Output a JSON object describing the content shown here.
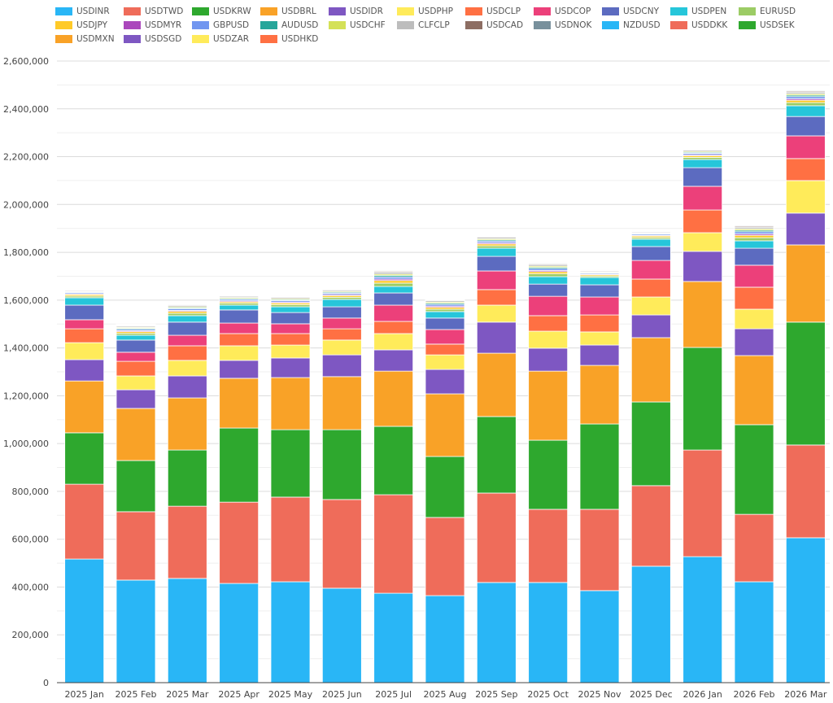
{
  "chart_data": {
    "type": "bar",
    "stacked": true,
    "title": "",
    "xlabel": "",
    "ylabel": "",
    "ylim": [
      0,
      2600000
    ],
    "yticks": [
      0,
      200000,
      400000,
      600000,
      800000,
      1000000,
      1200000,
      1400000,
      1600000,
      1800000,
      2000000,
      2200000,
      2400000,
      2600000
    ],
    "ytick_labels": [
      "0",
      "200,000",
      "400,000",
      "600,000",
      "800,000",
      "1,000,000",
      "1,200,000",
      "1,400,000",
      "1,600,000",
      "1,800,000",
      "2,000,000",
      "2,200,000",
      "2,400,000",
      "2,600,000"
    ],
    "grid": true,
    "legend_placement": "top",
    "categories": [
      "2025 Jan",
      "2025 Feb",
      "2025 Mar",
      "2025 Apr",
      "2025 May",
      "2025 Jun",
      "2025 Jul",
      "2025 Aug",
      "2025 Sep",
      "2025 Oct",
      "2025 Nov",
      "2025 Dec",
      "2026 Jan",
      "2026 Feb",
      "2026 Mar"
    ],
    "series": [
      {
        "name": "USDINR",
        "color": "#29b6f6",
        "values": [
          517000,
          429000,
          436000,
          415000,
          422000,
          395000,
          374000,
          364000,
          419000,
          419000,
          385000,
          487000,
          527000,
          422000,
          606000
        ]
      },
      {
        "name": "USDTWD",
        "color": "#ef6c5a",
        "values": [
          313000,
          286000,
          302000,
          340000,
          354000,
          371000,
          412000,
          327000,
          374000,
          306000,
          340000,
          337000,
          446000,
          282000,
          388000
        ]
      },
      {
        "name": "USDKRW",
        "color": "#2ea82e",
        "values": [
          215000,
          214000,
          235000,
          310000,
          282000,
          292000,
          286000,
          255000,
          320000,
          289000,
          357000,
          350000,
          429000,
          375000,
          514000
        ]
      },
      {
        "name": "USDBRL",
        "color": "#f9a227",
        "values": [
          217000,
          218000,
          218000,
          208000,
          218000,
          222000,
          231000,
          262000,
          265000,
          289000,
          245000,
          269000,
          276000,
          289000,
          323000
        ]
      },
      {
        "name": "USDIDR",
        "color": "#7e57c2",
        "values": [
          89000,
          78000,
          92000,
          75000,
          82000,
          91000,
          89000,
          102000,
          130000,
          96000,
          85000,
          95000,
          126000,
          112000,
          133000
        ]
      },
      {
        "name": "USDPHP",
        "color": "#ffeb5a",
        "values": [
          71000,
          58000,
          65000,
          61000,
          54000,
          62000,
          68000,
          61000,
          71000,
          71000,
          55000,
          75000,
          78000,
          82000,
          136000
        ]
      },
      {
        "name": "USDCLP",
        "color": "#ff7043",
        "values": [
          58000,
          61000,
          61000,
          51000,
          48000,
          47000,
          51000,
          45000,
          65000,
          65000,
          71000,
          75000,
          95000,
          92000,
          92000
        ]
      },
      {
        "name": "USDCOP",
        "color": "#ec407a",
        "values": [
          38000,
          38000,
          44000,
          44000,
          41000,
          45000,
          68000,
          61000,
          78000,
          81000,
          75000,
          78000,
          99000,
          92000,
          95000
        ]
      },
      {
        "name": "USDCNY",
        "color": "#5c6bc0",
        "values": [
          61000,
          51000,
          55000,
          55000,
          47000,
          47000,
          51000,
          48000,
          61000,
          51000,
          51000,
          58000,
          78000,
          71000,
          81000
        ]
      },
      {
        "name": "USDPEN",
        "color": "#26c6da",
        "values": [
          31000,
          20000,
          27000,
          20000,
          24000,
          31000,
          27000,
          27000,
          34000,
          31000,
          31000,
          31000,
          34000,
          31000,
          45000
        ]
      },
      {
        "name": "EURUSD",
        "color": "#9ccc65",
        "values": [
          7000,
          8000,
          10000,
          8000,
          9000,
          9000,
          14000,
          10000,
          10000,
          12000,
          6000,
          7000,
          9000,
          13000,
          13000
        ]
      },
      {
        "name": "USDJPY",
        "color": "#ffca28",
        "values": [
          6000,
          7000,
          8000,
          6000,
          7000,
          7000,
          11000,
          8000,
          8000,
          9000,
          5000,
          6000,
          7000,
          10000,
          10000
        ]
      },
      {
        "name": "USDMYR",
        "color": "#ab47bc",
        "values": [
          3000,
          4000,
          4000,
          4000,
          4000,
          4000,
          6000,
          5000,
          5000,
          5000,
          3000,
          3000,
          4000,
          6000,
          6000
        ]
      },
      {
        "name": "GBPUSD",
        "color": "#7196f0",
        "values": [
          5000,
          6000,
          7000,
          6000,
          6000,
          6000,
          9000,
          7000,
          7000,
          8000,
          4000,
          5000,
          6000,
          9000,
          9000
        ]
      },
      {
        "name": "AUDUSD",
        "color": "#26a69a",
        "values": [
          3000,
          4000,
          4000,
          4000,
          4000,
          4000,
          6000,
          5000,
          5000,
          5000,
          3000,
          3000,
          4000,
          6000,
          6000
        ]
      },
      {
        "name": "USDCHF",
        "color": "#d4e157",
        "values": [
          3000,
          4000,
          4000,
          4000,
          4000,
          4000,
          6000,
          5000,
          5000,
          5000,
          3000,
          3000,
          4000,
          6000,
          6000
        ]
      },
      {
        "name": "CLFCLP",
        "color": "#bdbdbd",
        "values": [
          4000,
          5000,
          6000,
          5000,
          5000,
          5000,
          8000,
          6000,
          6000,
          7000,
          4000,
          4000,
          5000,
          7000,
          7000
        ]
      },
      {
        "name": "USDCAD",
        "color": "#8d6e63",
        "values": [
          2000,
          2000,
          3000,
          2000,
          3000,
          3000,
          4000,
          3000,
          3000,
          3000,
          2000,
          2000,
          3000,
          4000,
          4000
        ]
      },
      {
        "name": "USDNOK",
        "color": "#78909c",
        "values": [
          2000,
          2000,
          2000,
          2000,
          2000,
          2000,
          3000,
          2000,
          2000,
          3000,
          1000,
          2000,
          2000,
          3000,
          3000
        ]
      },
      {
        "name": "NZDUSD",
        "color": "#29b6f6",
        "values": [
          1000,
          1000,
          2000,
          1000,
          2000,
          2000,
          2000,
          2000,
          2000,
          2000,
          1000,
          1000,
          2000,
          2000,
          2000
        ]
      },
      {
        "name": "USDDKK",
        "color": "#ef6c5a",
        "values": [
          1000,
          1000,
          2000,
          1000,
          2000,
          2000,
          2000,
          2000,
          2000,
          2000,
          1000,
          1000,
          2000,
          2000,
          2000
        ]
      },
      {
        "name": "USDSEK",
        "color": "#2ea82e",
        "values": [
          1000,
          1000,
          2000,
          1000,
          2000,
          2000,
          2000,
          2000,
          2000,
          2000,
          1000,
          1000,
          2000,
          2000,
          2000
        ]
      },
      {
        "name": "USDMXN",
        "color": "#f9a227",
        "values": [
          1000,
          1000,
          1000,
          1000,
          1000,
          1000,
          2000,
          1000,
          1000,
          1000,
          1000,
          1000,
          1000,
          1000,
          1000
        ]
      },
      {
        "name": "USDSGD",
        "color": "#7e57c2",
        "values": [
          400,
          500,
          600,
          500,
          500,
          500,
          800,
          600,
          600,
          700,
          400,
          400,
          500,
          700,
          700
        ]
      },
      {
        "name": "USDZAR",
        "color": "#ffeb5a",
        "values": [
          200,
          200,
          300,
          200,
          200,
          300,
          400,
          300,
          300,
          300,
          200,
          200,
          200,
          400,
          400
        ]
      },
      {
        "name": "USDHKD",
        "color": "#ff7043",
        "values": [
          200,
          200,
          300,
          200,
          200,
          300,
          400,
          300,
          300,
          300,
          200,
          200,
          200,
          400,
          400
        ]
      }
    ]
  }
}
